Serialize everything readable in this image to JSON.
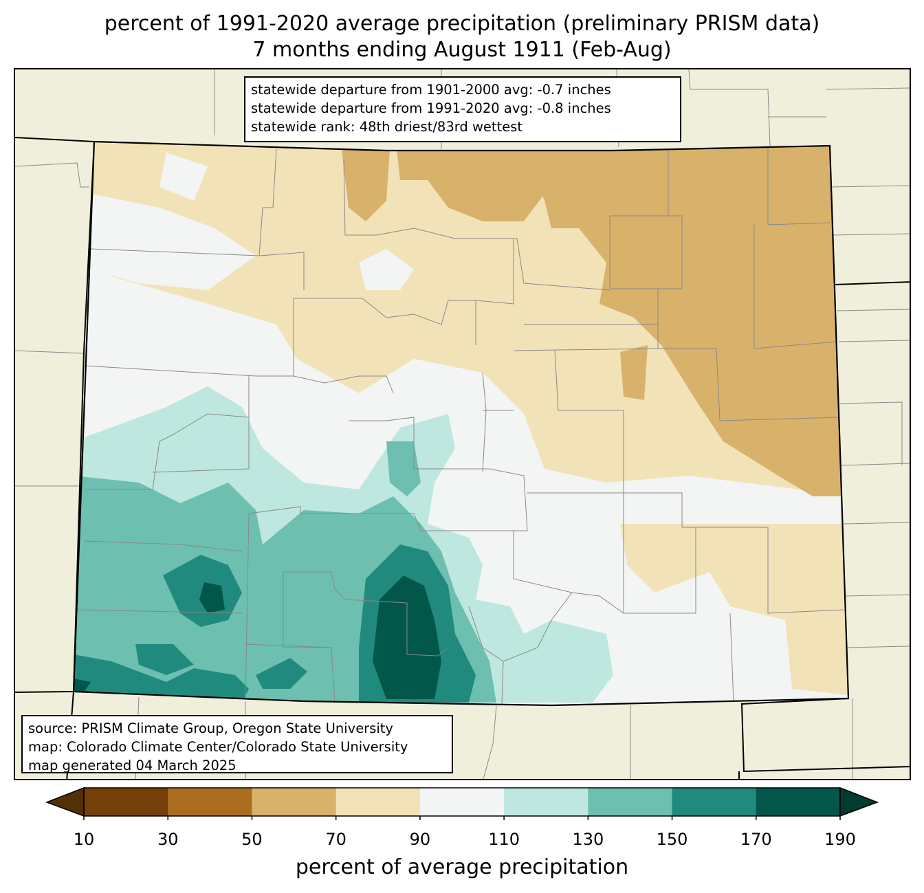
{
  "title": {
    "line1": "percent of 1991-2020 average precipitation (preliminary PRISM data)",
    "line2": "7 months ending August 1911 (Feb-Aug)"
  },
  "stats_box": {
    "line1": "statewide departure from 1901-2000 avg: -0.7 inches",
    "line2": "statewide departure from 1991-2020 avg: -0.8 inches",
    "line3": "statewide rank: 48th driest/83rd wettest"
  },
  "source_box": {
    "line1": "source: PRISM Climate Group, Oregon State University",
    "line2": "map: Colorado Climate Center/Colorado State University",
    "line3": "map generated 04 March 2025"
  },
  "colorbar": {
    "title": "percent of average precipitation",
    "ticks": [
      "10",
      "30",
      "50",
      "70",
      "90",
      "110",
      "130",
      "150",
      "170",
      "190"
    ],
    "under_color": "#543005",
    "over_color": "#003c30",
    "bins": [
      {
        "range": "10-30",
        "color": "#744009"
      },
      {
        "range": "30-50",
        "color": "#ab6e20"
      },
      {
        "range": "50-70",
        "color": "#d8b26a"
      },
      {
        "range": "70-90",
        "color": "#f2e2b8"
      },
      {
        "range": "90-110",
        "color": "#f3f5f4"
      },
      {
        "range": "110-130",
        "color": "#bee7e0"
      },
      {
        "range": "130-150",
        "color": "#6dbfaf"
      },
      {
        "range": "150-170",
        "color": "#218a7f"
      },
      {
        "range": "170-190",
        "color": "#02564a"
      }
    ]
  },
  "map": {
    "region": "Colorado",
    "background_color": "#efefdc",
    "county_line_color": "#808080"
  }
}
